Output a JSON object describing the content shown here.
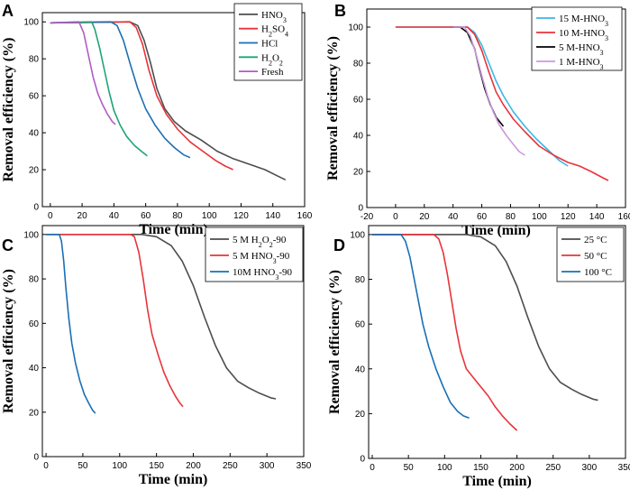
{
  "chart_data": [
    {
      "type": "line",
      "panel_label": "A",
      "xlabel": "Time (min)",
      "ylabel": "Removal efficiency (%)",
      "xlim": [
        -5,
        160
      ],
      "ylim": [
        0,
        105
      ],
      "xticks": [
        0,
        20,
        40,
        60,
        80,
        100,
        120,
        140,
        160
      ],
      "yticks": [
        0,
        20,
        40,
        60,
        80,
        100
      ],
      "legend_position": "top-right",
      "series": [
        {
          "name": "HNO",
          "sub": "3",
          "color": "#4d4d4d",
          "points": [
            [
              0,
              99.5
            ],
            [
              50,
              100
            ],
            [
              55,
              98
            ],
            [
              59,
              90
            ],
            [
              63,
              78
            ],
            [
              67,
              64
            ],
            [
              72,
              53
            ],
            [
              78,
              46
            ],
            [
              85,
              41
            ],
            [
              95,
              36
            ],
            [
              105,
              30
            ],
            [
              115,
              26
            ],
            [
              125,
              23
            ],
            [
              135,
              20
            ],
            [
              142,
              17
            ],
            [
              148,
              14.5
            ]
          ]
        },
        {
          "name": "H",
          "sub": "2",
          "name2": "SO",
          "sub2": "4",
          "color": "#e8343a",
          "points": [
            [
              0,
              99.5
            ],
            [
              50,
              100
            ],
            [
              54,
              97
            ],
            [
              58,
              88
            ],
            [
              62,
              74
            ],
            [
              67,
              60
            ],
            [
              73,
              50
            ],
            [
              80,
              42
            ],
            [
              88,
              35
            ],
            [
              96,
              30
            ],
            [
              104,
              25
            ],
            [
              110,
              22
            ],
            [
              115,
              20
            ]
          ]
        },
        {
          "name": "HCl",
          "color": "#1a6fb5",
          "points": [
            [
              0,
              99.5
            ],
            [
              38,
              100
            ],
            [
              42,
              98
            ],
            [
              46,
              90
            ],
            [
              50,
              78
            ],
            [
              55,
              64
            ],
            [
              60,
              53
            ],
            [
              66,
              44
            ],
            [
              72,
              37
            ],
            [
              78,
              32
            ],
            [
              84,
              28
            ],
            [
              88,
              26.5
            ]
          ]
        },
        {
          "name": "H",
          "sub": "2",
          "name2": "O",
          "sub2": "2",
          "color": "#1ea37a",
          "points": [
            [
              0,
              99.5
            ],
            [
              26,
              100
            ],
            [
              28,
              96
            ],
            [
              31,
              86
            ],
            [
              34,
              74
            ],
            [
              37,
              62
            ],
            [
              40,
              52
            ],
            [
              44,
              44
            ],
            [
              48,
              38
            ],
            [
              53,
              33
            ],
            [
              58,
              29.5
            ],
            [
              61,
              27.5
            ]
          ]
        },
        {
          "name": "Fresh",
          "color": "#b05cc4",
          "points": [
            [
              0,
              99.5
            ],
            [
              18,
              100
            ],
            [
              21,
              94
            ],
            [
              24,
              82
            ],
            [
              27,
              70
            ],
            [
              30,
              61
            ],
            [
              33,
              55
            ],
            [
              36,
              50
            ],
            [
              39,
              46
            ],
            [
              41,
              44.5
            ]
          ]
        }
      ]
    },
    {
      "type": "line",
      "panel_label": "B",
      "xlabel": "Time (min)",
      "ylabel": "Removal efficiency (%)",
      "xlim": [
        -20,
        160
      ],
      "ylim": [
        0,
        110
      ],
      "xticks": [
        -20,
        0,
        20,
        40,
        60,
        80,
        100,
        120,
        140,
        160
      ],
      "yticks": [
        0,
        20,
        40,
        60,
        80,
        100
      ],
      "legend_position": "top-right",
      "series": [
        {
          "name": "15 M-HNO",
          "sub": "3",
          "color": "#3bb6e6",
          "points": [
            [
              0,
              100
            ],
            [
              50,
              100
            ],
            [
              55,
              97
            ],
            [
              60,
              90
            ],
            [
              65,
              80
            ],
            [
              70,
              70
            ],
            [
              75,
              62
            ],
            [
              82,
              53
            ],
            [
              90,
              45
            ],
            [
              98,
              38
            ],
            [
              106,
              32
            ],
            [
              114,
              26
            ],
            [
              120,
              23
            ]
          ]
        },
        {
          "name": "10 M-HNO",
          "sub": "3",
          "color": "#e8343a",
          "points": [
            [
              0,
              100
            ],
            [
              50,
              100
            ],
            [
              55,
              96
            ],
            [
              60,
              87
            ],
            [
              65,
              75
            ],
            [
              70,
              64
            ],
            [
              75,
              57
            ],
            [
              82,
              49
            ],
            [
              90,
              42
            ],
            [
              100,
              34
            ],
            [
              110,
              29
            ],
            [
              120,
              25
            ],
            [
              128,
              23
            ],
            [
              136,
              20
            ],
            [
              143,
              17
            ],
            [
              148,
              15
            ]
          ]
        },
        {
          "name": "5 M-HNO",
          "sub": "3",
          "color": "#000000",
          "points": [
            [
              40,
              100
            ],
            [
              45,
              100
            ],
            [
              50,
              97
            ],
            [
              55,
              88
            ],
            [
              58,
              78
            ],
            [
              62,
              66
            ],
            [
              66,
              57
            ],
            [
              70,
              50
            ],
            [
              75,
              45
            ]
          ]
        },
        {
          "name": "1 M-HNO",
          "sub": "3",
          "color": "#cc99dd",
          "points": [
            [
              40,
              100
            ],
            [
              48,
              100
            ],
            [
              52,
              95
            ],
            [
              56,
              85
            ],
            [
              60,
              73
            ],
            [
              64,
              62
            ],
            [
              68,
              53
            ],
            [
              72,
              46
            ],
            [
              77,
              40
            ],
            [
              82,
              35
            ],
            [
              86,
              31
            ],
            [
              90,
              29
            ]
          ]
        }
      ]
    },
    {
      "type": "line",
      "panel_label": "C",
      "xlabel": "Time (min)",
      "ylabel": "Removal efficiency (%)",
      "xlim": [
        -5,
        350
      ],
      "ylim": [
        0,
        104
      ],
      "xticks": [
        0,
        50,
        100,
        150,
        200,
        250,
        300,
        350
      ],
      "yticks": [
        0,
        20,
        40,
        60,
        80,
        100
      ],
      "legend_position": "top-right",
      "series": [
        {
          "name": "5 M H",
          "sub": "2",
          "name2": "O",
          "sub2": "2",
          "name3": "-90",
          "color": "#4d4d4d",
          "points": [
            [
              0,
              100
            ],
            [
              130,
              100
            ],
            [
              150,
              99
            ],
            [
              170,
              95
            ],
            [
              185,
              88
            ],
            [
              200,
              77
            ],
            [
              215,
              63
            ],
            [
              230,
              50
            ],
            [
              245,
              40
            ],
            [
              260,
              34
            ],
            [
              275,
              31
            ],
            [
              290,
              28.5
            ],
            [
              305,
              26.5
            ],
            [
              312,
              26
            ]
          ]
        },
        {
          "name": "5 M HNO",
          "sub": "3",
          "name3": "-90",
          "color": "#e8343a",
          "points": [
            [
              0,
              100
            ],
            [
              115,
              100
            ],
            [
              120,
              99
            ],
            [
              126,
              92
            ],
            [
              132,
              80
            ],
            [
              138,
              66
            ],
            [
              144,
              55
            ],
            [
              152,
              46
            ],
            [
              160,
              38
            ],
            [
              168,
              32
            ],
            [
              176,
              27
            ],
            [
              182,
              24
            ],
            [
              186,
              22.5
            ]
          ]
        },
        {
          "name": "10M HNO",
          "sub": "3",
          "name3": "-90",
          "color": "#1a6fb5",
          "points": [
            [
              0,
              100
            ],
            [
              18,
              100
            ],
            [
              21,
              97
            ],
            [
              24,
              88
            ],
            [
              27,
              76
            ],
            [
              31,
              62
            ],
            [
              35,
              51
            ],
            [
              40,
              42
            ],
            [
              46,
              34
            ],
            [
              52,
              28
            ],
            [
              58,
              24
            ],
            [
              63,
              21
            ],
            [
              67,
              19.5
            ]
          ]
        }
      ]
    },
    {
      "type": "line",
      "panel_label": "D",
      "xlabel": "Time (min)",
      "ylabel": "Removal efficiency (%)",
      "xlim": [
        -5,
        350
      ],
      "ylim": [
        0,
        104
      ],
      "xticks": [
        0,
        50,
        100,
        150,
        200,
        250,
        300,
        350
      ],
      "yticks": [
        0,
        20,
        40,
        60,
        80,
        100
      ],
      "legend_position": "top-right",
      "series": [
        {
          "name": "25 °C",
          "color": "#4d4d4d",
          "points": [
            [
              0,
              100
            ],
            [
              130,
              100
            ],
            [
              150,
              99
            ],
            [
              170,
              95
            ],
            [
              185,
              88
            ],
            [
              200,
              77
            ],
            [
              215,
              63
            ],
            [
              230,
              50
            ],
            [
              245,
              40
            ],
            [
              260,
              34
            ],
            [
              275,
              31
            ],
            [
              290,
              28.5
            ],
            [
              305,
              26.5
            ],
            [
              312,
              26
            ]
          ]
        },
        {
          "name": "50 °C",
          "color": "#e8343a",
          "points": [
            [
              0,
              100
            ],
            [
              85,
              100
            ],
            [
              92,
              98
            ],
            [
              98,
              92
            ],
            [
              104,
              82
            ],
            [
              110,
              70
            ],
            [
              116,
              58
            ],
            [
              122,
              48
            ],
            [
              130,
              40
            ],
            [
              140,
              36
            ],
            [
              150,
              32
            ],
            [
              160,
              28
            ],
            [
              170,
              23
            ],
            [
              180,
              19
            ],
            [
              190,
              15.5
            ],
            [
              200,
              12.5
            ]
          ]
        },
        {
          "name": "100 °C",
          "color": "#1a6fb5",
          "points": [
            [
              0,
              100
            ],
            [
              40,
              100
            ],
            [
              46,
              97
            ],
            [
              52,
              90
            ],
            [
              58,
              80
            ],
            [
              64,
              70
            ],
            [
              70,
              60
            ],
            [
              78,
              50
            ],
            [
              88,
              40
            ],
            [
              98,
              32
            ],
            [
              108,
              25
            ],
            [
              118,
              21
            ],
            [
              126,
              19
            ],
            [
              134,
              18
            ]
          ]
        }
      ]
    }
  ]
}
